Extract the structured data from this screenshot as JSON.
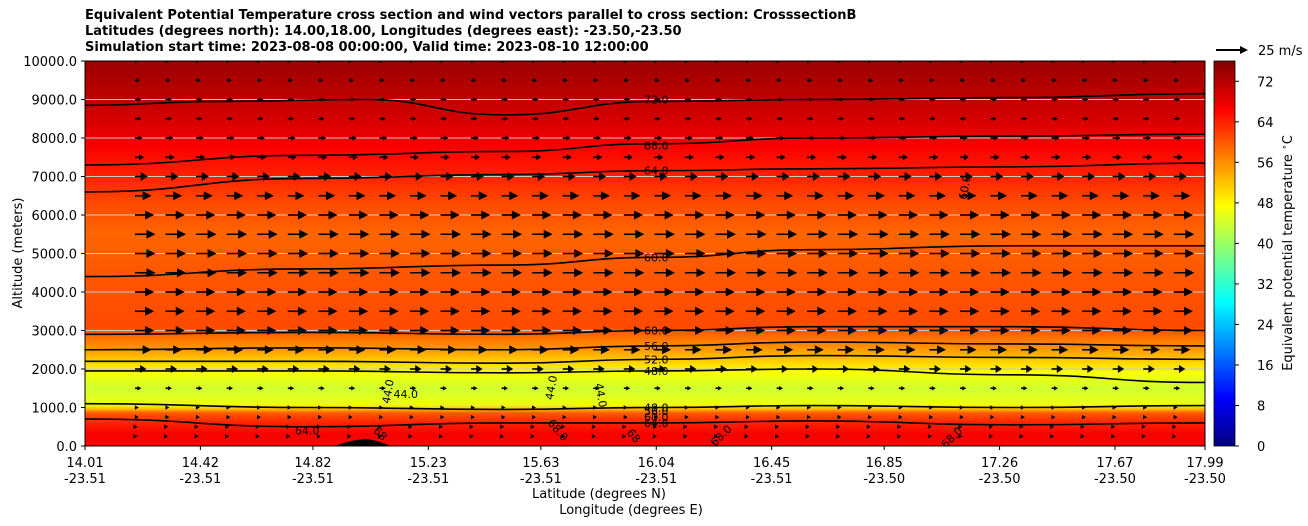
{
  "chart_data": {
    "type": "heatmap",
    "title_lines": [
      "Equivalent Potential Temperature cross section and wind vectors parallel to cross section: CrosssectionB",
      "Latitudes (degrees north): 14.00,18.00, Longitudes (degrees east): -23.50,-23.50",
      "Simulation start time: 2023-08-08 00:00:00, Valid time: 2023-08-10 12:00:00"
    ],
    "ylabel": "Altitude (meters)",
    "xlabel_lat": "Latitude (degrees N)",
    "xlabel_lon": "Longitude (degrees E)",
    "ylim": [
      0,
      10000
    ],
    "y_ticks": [
      "0.0",
      "1000.0",
      "2000.0",
      "3000.0",
      "4000.0",
      "5000.0",
      "6000.0",
      "7000.0",
      "8000.0",
      "9000.0",
      "10000.0"
    ],
    "x_ticks_lat": [
      "14.01",
      "14.42",
      "14.82",
      "15.23",
      "15.63",
      "16.04",
      "16.45",
      "16.85",
      "17.26",
      "17.67",
      "17.99"
    ],
    "x_ticks_lon": [
      "-23.51",
      "-23.51",
      "-23.51",
      "-23.51",
      "-23.51",
      "-23.51",
      "-23.51",
      "-23.50",
      "-23.50",
      "-23.50",
      "-23.50"
    ],
    "colorbar": {
      "label": "Equivalent potential temperature $^\\circ$C",
      "ticks": [
        "0",
        "8",
        "16",
        "24",
        "32",
        "40",
        "48",
        "56",
        "64",
        "72"
      ],
      "range": [
        0,
        76
      ]
    },
    "quiver_key": "25 m/s",
    "theta_e_profile": [
      {
        "z": 0,
        "v": 66
      },
      {
        "z": 300,
        "v": 67
      },
      {
        "z": 600,
        "v": 64
      },
      {
        "z": 850,
        "v": 60
      },
      {
        "z": 1000,
        "v": 50
      },
      {
        "z": 1100,
        "v": 46
      },
      {
        "z": 1500,
        "v": 44
      },
      {
        "z": 1900,
        "v": 47
      },
      {
        "z": 2200,
        "v": 51
      },
      {
        "z": 2500,
        "v": 55
      },
      {
        "z": 2800,
        "v": 58
      },
      {
        "z": 3100,
        "v": 61
      },
      {
        "z": 4500,
        "v": 60
      },
      {
        "z": 5500,
        "v": 59
      },
      {
        "z": 6300,
        "v": 61
      },
      {
        "z": 7000,
        "v": 64
      },
      {
        "z": 7800,
        "v": 67
      },
      {
        "z": 8600,
        "v": 70
      },
      {
        "z": 9300,
        "v": 72
      },
      {
        "z": 10000,
        "v": 74
      }
    ],
    "contours": [
      {
        "label": "72.0",
        "label_x": 16.04,
        "label_z": 9000,
        "points": [
          [
            14.01,
            8850
          ],
          [
            14.5,
            8950
          ],
          [
            15.0,
            9000
          ],
          [
            15.5,
            8600
          ],
          [
            16.04,
            8950
          ],
          [
            16.6,
            9000
          ],
          [
            17.3,
            9050
          ],
          [
            17.99,
            9150
          ]
        ]
      },
      {
        "label": "68.0",
        "label_x": 16.04,
        "label_z": 7800,
        "points": [
          [
            14.01,
            7300
          ],
          [
            14.8,
            7550
          ],
          [
            15.5,
            7650
          ],
          [
            16.04,
            7850
          ],
          [
            16.6,
            8000
          ],
          [
            17.3,
            8050
          ],
          [
            17.99,
            8100
          ]
        ]
      },
      {
        "label": "64.0",
        "label_x": 16.04,
        "label_z": 7150,
        "points": [
          [
            14.01,
            6600
          ],
          [
            14.8,
            6950
          ],
          [
            15.5,
            7050
          ],
          [
            16.04,
            7150
          ],
          [
            16.6,
            7200
          ],
          [
            17.3,
            7250
          ],
          [
            17.99,
            7350
          ]
        ]
      },
      {
        "label": "60.0",
        "label_x": 16.04,
        "label_z": 4900,
        "points": [
          [
            14.01,
            4400
          ],
          [
            14.8,
            4600
          ],
          [
            15.5,
            4700
          ],
          [
            16.04,
            4900
          ],
          [
            16.6,
            5100
          ],
          [
            17.3,
            5200
          ],
          [
            17.99,
            5200
          ]
        ]
      },
      {
        "label": "60.0",
        "label_x": 16.04,
        "label_z": 3000,
        "points": [
          [
            14.01,
            2900
          ],
          [
            14.8,
            2950
          ],
          [
            15.5,
            2900
          ],
          [
            16.04,
            3000
          ],
          [
            16.6,
            3100
          ],
          [
            17.3,
            3100
          ],
          [
            17.99,
            3000
          ]
        ]
      },
      {
        "label": "56.0",
        "label_x": 16.04,
        "label_z": 2600,
        "points": [
          [
            14.01,
            2500
          ],
          [
            14.8,
            2550
          ],
          [
            15.5,
            2500
          ],
          [
            16.04,
            2600
          ],
          [
            16.6,
            2700
          ],
          [
            17.3,
            2650
          ],
          [
            17.99,
            2600
          ]
        ]
      },
      {
        "label": "52.0",
        "label_x": 16.04,
        "label_z": 2250,
        "points": [
          [
            14.01,
            2200
          ],
          [
            14.8,
            2200
          ],
          [
            15.5,
            2150
          ],
          [
            16.04,
            2250
          ],
          [
            16.6,
            2350
          ],
          [
            17.3,
            2300
          ],
          [
            17.99,
            2250
          ]
        ]
      },
      {
        "label": "48.0",
        "label_x": 16.04,
        "label_z": 1950,
        "points": [
          [
            14.01,
            1950
          ],
          [
            14.8,
            1950
          ],
          [
            15.5,
            1900
          ],
          [
            16.04,
            1950
          ],
          [
            16.6,
            2000
          ],
          [
            17.3,
            1850
          ],
          [
            17.99,
            1650
          ]
        ]
      },
      {
        "label": "48.0",
        "label_x": 16.04,
        "label_z": 1000,
        "points": [
          [
            14.01,
            1100
          ],
          [
            14.8,
            1000
          ],
          [
            15.5,
            950
          ],
          [
            16.04,
            1000
          ],
          [
            16.6,
            1050
          ],
          [
            17.3,
            1000
          ],
          [
            17.99,
            1050
          ]
        ]
      },
      {
        "label": "64.0",
        "label_x": 16.04,
        "label_z": 600,
        "points": [
          [
            14.01,
            700
          ],
          [
            14.8,
            500
          ],
          [
            15.5,
            600
          ],
          [
            16.04,
            600
          ],
          [
            16.6,
            650
          ],
          [
            17.3,
            550
          ],
          [
            17.99,
            600
          ]
        ]
      }
    ],
    "extra_labels": [
      {
        "text": "60.0",
        "x": 17.15,
        "z": 6700,
        "rotate": -80
      },
      {
        "text": "44.0",
        "x": 15.1,
        "z": 1400,
        "rotate": -80
      },
      {
        "text": "44.0",
        "x": 15.15,
        "z": 1250,
        "rotate": 0
      },
      {
        "text": "44.0",
        "x": 15.68,
        "z": 1500,
        "rotate": -80
      },
      {
        "text": "44.0",
        "x": 15.83,
        "z": 1300,
        "rotate": 80
      },
      {
        "text": "64.0",
        "x": 14.8,
        "z": 300,
        "rotate": 0
      },
      {
        "text": "68",
        "x": 15.05,
        "z": 250,
        "rotate": 45
      },
      {
        "text": "68.0",
        "x": 15.68,
        "z": 350,
        "rotate": 50
      },
      {
        "text": "68",
        "x": 15.95,
        "z": 200,
        "rotate": 50
      },
      {
        "text": "68.0",
        "x": 16.28,
        "z": 200,
        "rotate": -45
      },
      {
        "text": "68.0",
        "x": 17.1,
        "z": 150,
        "rotate": -45
      },
      {
        "text": "56.0",
        "x": 16.04,
        "z": 800,
        "rotate": 0
      },
      {
        "text": "60.0",
        "x": 16.04,
        "z": 650,
        "rotate": 0
      }
    ],
    "wind_rows_z": [
      250,
      500,
      750,
      1000,
      1500,
      2000,
      2500,
      3000,
      3500,
      4000,
      4500,
      5000,
      5500,
      6000,
      6500,
      7000,
      7500,
      8000,
      8500,
      9000,
      9500,
      10000
    ],
    "wind_speed_ms": [
      2,
      2,
      3,
      3,
      5,
      9,
      13,
      15,
      15,
      15,
      16,
      16,
      16,
      15,
      13,
      10,
      7,
      6,
      5,
      5,
      4,
      3
    ],
    "wind_columns": 35
  }
}
